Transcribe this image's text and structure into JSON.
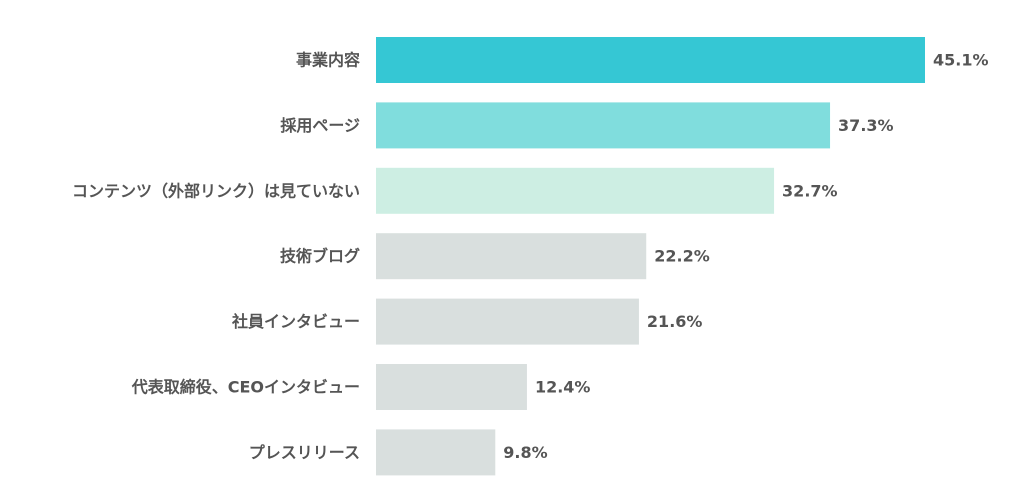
{
  "chart_data": {
    "type": "bar",
    "orientation": "horizontal",
    "categories": [
      "事業内容",
      "採用ページ",
      "コンテンツ（外部リンク）は見ていない",
      "技術ブログ",
      "社員インタビュー",
      "代表取締役、CEOインタビュー",
      "プレスリリース"
    ],
    "values": [
      45.1,
      37.3,
      32.7,
      22.2,
      21.6,
      12.4,
      9.8
    ],
    "value_labels": [
      "45.1%",
      "37.3%",
      "32.7%",
      "22.2%",
      "21.6%",
      "12.4%",
      "9.8%"
    ],
    "unit": "%",
    "title": "",
    "xlabel": "",
    "ylabel": "",
    "xlim": [
      0,
      45.1
    ],
    "grid": false,
    "legend": "none",
    "bar_colors": [
      "#35c7d4",
      "#80dddd",
      "#cdeee3",
      "#d9dfde",
      "#d9dfde",
      "#d9dfde",
      "#d9dfde"
    ]
  }
}
